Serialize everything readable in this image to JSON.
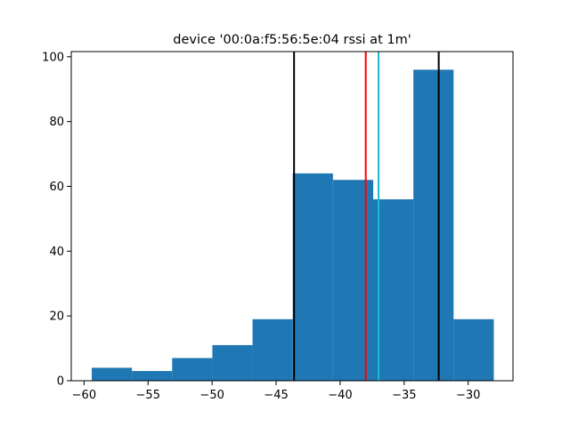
{
  "chart_data": {
    "type": "bar",
    "title": "device '00:0a:f5:56:5e:04 rssi at 1m'",
    "xlabel": "",
    "ylabel": "",
    "xlim": [
      -61,
      -26.5
    ],
    "ylim": [
      0,
      101.6
    ],
    "bin_edges": [
      -59.4,
      -56.26,
      -53.12,
      -49.98,
      -46.84,
      -43.7,
      -40.56,
      -37.42,
      -34.28,
      -31.14,
      -28.0
    ],
    "counts": [
      4,
      3,
      7,
      11,
      19,
      64,
      62,
      56,
      96,
      19
    ],
    "bar_color": "#1f77b4",
    "xticks": [
      -60,
      -55,
      -50,
      -45,
      -40,
      -35,
      -30
    ],
    "xtick_labels": [
      "−60",
      "−55",
      "−50",
      "−45",
      "−40",
      "−35",
      "−30"
    ],
    "yticks": [
      0,
      20,
      40,
      60,
      80,
      100
    ],
    "ytick_labels": [
      "0",
      "20",
      "40",
      "60",
      "80",
      "100"
    ],
    "vlines": [
      {
        "x": -43.6,
        "color": "#000000"
      },
      {
        "x": -32.3,
        "color": "#000000"
      },
      {
        "x": -38.0,
        "color": "#ff0000"
      },
      {
        "x": -37.0,
        "color": "#17becf"
      }
    ],
    "grid": false,
    "legend": "none"
  }
}
